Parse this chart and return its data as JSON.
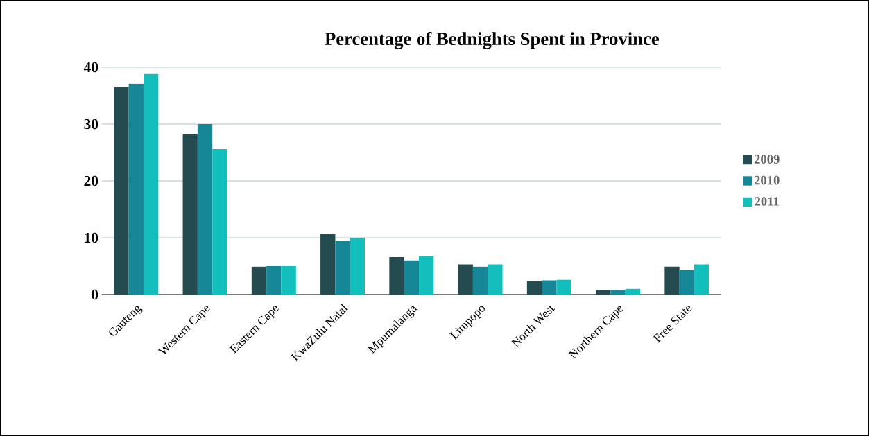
{
  "chart_data": {
    "type": "bar",
    "title": "Percentage of Bednights Spent in Province",
    "categories": [
      "Gauteng",
      "Western Cape",
      "Eastern Cape",
      "KwaZulu Natal",
      "Mpumalanga",
      "Limpopo",
      "North West",
      "Northern Cape",
      "Free State"
    ],
    "series": [
      {
        "name": "2009",
        "color": "#234b50",
        "values": [
          36.6,
          28.2,
          4.9,
          10.6,
          6.6,
          5.3,
          2.4,
          0.8,
          4.9
        ]
      },
      {
        "name": "2010",
        "color": "#158797",
        "values": [
          37.1,
          30.0,
          5.0,
          9.5,
          6.0,
          4.9,
          2.5,
          0.8,
          4.4
        ]
      },
      {
        "name": "2011",
        "color": "#12bfbd",
        "values": [
          38.8,
          25.6,
          5.0,
          10.0,
          6.7,
          5.3,
          2.6,
          1.0,
          5.3
        ]
      }
    ],
    "ylim": [
      0,
      40
    ],
    "yticks": [
      0,
      10,
      20,
      30,
      40
    ],
    "grid": "y",
    "legend": "right"
  }
}
